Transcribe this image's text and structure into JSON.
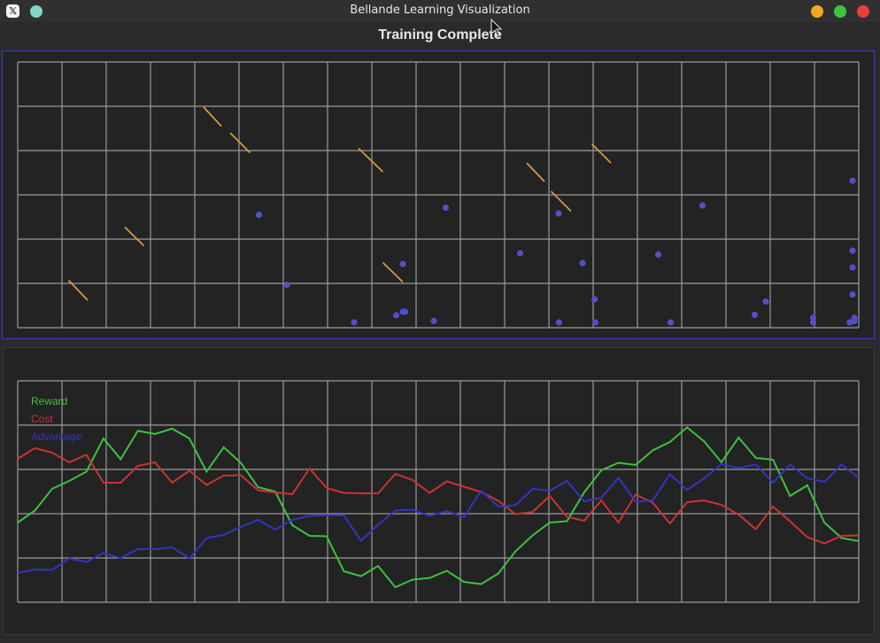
{
  "window": {
    "title": "Bellande Learning Visualization",
    "app_icon": "x-icon",
    "left_icon_glyph": "𝕏",
    "controls": {
      "minimize_color": "#f5a623",
      "maximize_color": "#3dc43d",
      "close_color": "#e54040",
      "extra_color": "#7fd6c8"
    }
  },
  "heading": "Training Complete",
  "colors": {
    "grid": "#9a9a9a",
    "panel_bg": "#232323",
    "top_border": "#3c3cc8",
    "point": "#5050cc",
    "segment": "#d49a40",
    "reward": "#3cc23c",
    "cost": "#c83434",
    "advantage": "#3434c0"
  },
  "chart_data": [
    {
      "type": "scatter",
      "grid": true,
      "xlim": [
        0,
        19
      ],
      "ylim": [
        0,
        6
      ],
      "points": [
        [
          5.45,
          2.55
        ],
        [
          6.08,
          0.97
        ],
        [
          7.6,
          0.12
        ],
        [
          8.55,
          0.28
        ],
        [
          8.7,
          0.36
        ],
        [
          8.75,
          0.36
        ],
        [
          8.7,
          1.44
        ],
        [
          9.4,
          0.15
        ],
        [
          9.67,
          2.71
        ],
        [
          11.35,
          1.68
        ],
        [
          12.22,
          2.58
        ],
        [
          12.23,
          0.12
        ],
        [
          12.76,
          1.46
        ],
        [
          13.03,
          0.64
        ],
        [
          13.05,
          0.12
        ],
        [
          14.47,
          1.65
        ],
        [
          14.75,
          0.12
        ],
        [
          15.47,
          2.76
        ],
        [
          16.65,
          0.29
        ],
        [
          16.9,
          0.59
        ],
        [
          17.97,
          0.22
        ],
        [
          17.97,
          0.12
        ],
        [
          18.8,
          0.12
        ],
        [
          18.9,
          0.15
        ],
        [
          18.9,
          0.22
        ],
        [
          18.86,
          0.75
        ],
        [
          18.86,
          1.36
        ],
        [
          18.86,
          1.74
        ],
        [
          18.86,
          3.32
        ]
      ],
      "segments": [
        [
          [
            1.15,
            1.07
          ],
          [
            1.58,
            0.62
          ]
        ],
        [
          [
            2.42,
            2.27
          ],
          [
            2.85,
            1.85
          ]
        ],
        [
          [
            4.2,
            4.98
          ],
          [
            4.6,
            4.55
          ]
        ],
        [
          [
            4.8,
            4.4
          ],
          [
            5.25,
            3.95
          ]
        ],
        [
          [
            7.7,
            4.05
          ],
          [
            8.25,
            3.52
          ]
        ],
        [
          [
            8.25,
            1.47
          ],
          [
            8.7,
            1.03
          ]
        ],
        [
          [
            11.5,
            3.72
          ],
          [
            11.9,
            3.3
          ]
        ],
        [
          [
            12.05,
            3.08
          ],
          [
            12.5,
            2.63
          ]
        ],
        [
          [
            12.97,
            4.15
          ],
          [
            13.4,
            3.72
          ]
        ]
      ]
    },
    {
      "type": "line",
      "grid": true,
      "xlim": [
        0,
        50
      ],
      "ylim": [
        0,
        5
      ],
      "legend": "top-left",
      "series": [
        {
          "name": "Reward",
          "values": [
            1.8,
            2.07,
            2.56,
            2.74,
            2.95,
            3.7,
            3.23,
            3.87,
            3.8,
            3.92,
            3.7,
            2.95,
            3.5,
            3.15,
            2.6,
            2.5,
            1.74,
            1.5,
            1.49,
            0.7,
            0.59,
            0.82,
            0.34,
            0.51,
            0.55,
            0.71,
            0.46,
            0.41,
            0.65,
            1.15,
            1.51,
            1.8,
            1.83,
            2.48,
            2.98,
            3.15,
            3.1,
            3.43,
            3.62,
            3.95,
            3.63,
            3.16,
            3.72,
            3.26,
            3.22,
            2.4,
            2.64,
            1.8,
            1.45,
            1.38
          ]
        },
        {
          "name": "Cost",
          "values": [
            3.24,
            3.48,
            3.38,
            3.16,
            3.33,
            2.7,
            2.7,
            3.08,
            3.16,
            2.7,
            2.97,
            2.65,
            2.86,
            2.87,
            2.53,
            2.48,
            2.44,
            3.02,
            2.58,
            2.47,
            2.46,
            2.46,
            2.9,
            2.76,
            2.47,
            2.73,
            2.61,
            2.49,
            2.29,
            1.99,
            2.04,
            2.4,
            1.93,
            1.84,
            2.3,
            1.8,
            2.43,
            2.25,
            1.78,
            2.26,
            2.3,
            2.2,
            1.98,
            1.65,
            2.16,
            1.83,
            1.47,
            1.33,
            1.5,
            1.51
          ]
        },
        {
          "name": "Advantage",
          "values": [
            0.66,
            0.74,
            0.73,
            0.99,
            0.91,
            1.11,
            1.0,
            1.2,
            1.2,
            1.24,
            0.99,
            1.45,
            1.52,
            1.7,
            1.86,
            1.64,
            1.86,
            1.95,
            1.97,
            1.96,
            1.39,
            1.75,
            2.07,
            2.09,
            1.95,
            2.06,
            1.92,
            2.52,
            2.16,
            2.19,
            2.56,
            2.52,
            2.74,
            2.28,
            2.36,
            2.81,
            2.27,
            2.3,
            2.89,
            2.54,
            2.8,
            3.12,
            3.03,
            3.11,
            2.7,
            3.11,
            2.8,
            2.72,
            3.11,
            2.81
          ]
        }
      ]
    }
  ]
}
